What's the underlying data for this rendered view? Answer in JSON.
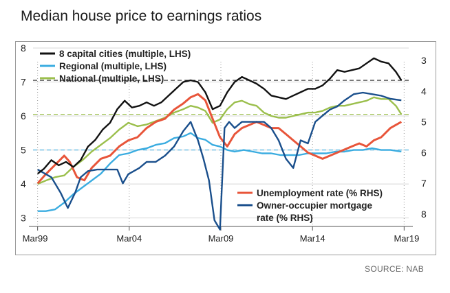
{
  "header": {
    "title": "Median house price to earnings ratios"
  },
  "footer": {
    "source": "SOURCE: NAB"
  },
  "chart_data": {
    "type": "line",
    "title": "Median house price to earnings ratios",
    "xlabel": "",
    "ylabel": "",
    "x_ticks": [
      "Mar99",
      "Mar04",
      "Mar09",
      "Mar14",
      "Mar19"
    ],
    "x_tick_values": [
      1999.25,
      2004.25,
      2009.25,
      2014.25,
      2019.25
    ],
    "xlim": [
      1999.0,
      2019.5
    ],
    "y_left": {
      "ticks": [
        "3",
        "4",
        "5",
        "6",
        "7",
        "8"
      ],
      "range": [
        2.75,
        8.0
      ]
    },
    "y_right": {
      "ticks": [
        "3",
        "4",
        "5",
        "6",
        "7",
        "8"
      ],
      "range": [
        2.6,
        8.4
      ],
      "inverted": true
    },
    "reference_lines": [
      {
        "series": "8 capital cities (multiple, LHS)",
        "y": 7.05,
        "style": "dashed",
        "color": "#222222"
      },
      {
        "series": "Regional (multiple, LHS)",
        "y": 5.0,
        "style": "dashed",
        "color": "#3aace0"
      },
      {
        "series": "National (multiple, LHS)",
        "y": 6.05,
        "style": "dashed",
        "color": "#9bbf4c"
      }
    ],
    "series": [
      {
        "name": "8 capital cities (multiple, LHS)",
        "axis": "left",
        "color": "#111111",
        "points": [
          [
            1999.25,
            4.3
          ],
          [
            1999.6,
            4.45
          ],
          [
            2000.0,
            4.7
          ],
          [
            2000.4,
            4.55
          ],
          [
            2000.8,
            4.65
          ],
          [
            2001.2,
            4.5
          ],
          [
            2001.6,
            4.7
          ],
          [
            2002.0,
            5.1
          ],
          [
            2002.4,
            5.3
          ],
          [
            2002.8,
            5.6
          ],
          [
            2003.2,
            5.8
          ],
          [
            2003.6,
            6.2
          ],
          [
            2004.0,
            6.45
          ],
          [
            2004.4,
            6.25
          ],
          [
            2004.8,
            6.3
          ],
          [
            2005.2,
            6.4
          ],
          [
            2005.6,
            6.3
          ],
          [
            2006.0,
            6.4
          ],
          [
            2006.4,
            6.6
          ],
          [
            2006.8,
            6.8
          ],
          [
            2007.2,
            7.0
          ],
          [
            2007.6,
            7.05
          ],
          [
            2008.0,
            7.0
          ],
          [
            2008.4,
            6.7
          ],
          [
            2008.8,
            6.2
          ],
          [
            2009.2,
            6.3
          ],
          [
            2009.6,
            6.7
          ],
          [
            2010.0,
            7.0
          ],
          [
            2010.4,
            7.15
          ],
          [
            2010.8,
            7.05
          ],
          [
            2011.2,
            6.95
          ],
          [
            2011.6,
            6.8
          ],
          [
            2012.0,
            6.6
          ],
          [
            2012.4,
            6.55
          ],
          [
            2012.8,
            6.5
          ],
          [
            2013.2,
            6.6
          ],
          [
            2013.6,
            6.7
          ],
          [
            2014.0,
            6.8
          ],
          [
            2014.4,
            6.8
          ],
          [
            2014.8,
            6.9
          ],
          [
            2015.2,
            7.1
          ],
          [
            2015.6,
            7.35
          ],
          [
            2016.0,
            7.3
          ],
          [
            2016.4,
            7.35
          ],
          [
            2016.8,
            7.4
          ],
          [
            2017.2,
            7.55
          ],
          [
            2017.6,
            7.7
          ],
          [
            2018.0,
            7.6
          ],
          [
            2018.4,
            7.55
          ],
          [
            2018.8,
            7.3
          ],
          [
            2019.1,
            7.05
          ]
        ]
      },
      {
        "name": "Regional (multiple, LHS)",
        "axis": "left",
        "color": "#3aace0",
        "points": [
          [
            1999.25,
            3.2
          ],
          [
            1999.7,
            3.2
          ],
          [
            2000.2,
            3.25
          ],
          [
            2000.7,
            3.45
          ],
          [
            2001.2,
            3.7
          ],
          [
            2001.7,
            3.9
          ],
          [
            2002.2,
            4.1
          ],
          [
            2002.7,
            4.3
          ],
          [
            2003.2,
            4.6
          ],
          [
            2003.7,
            4.85
          ],
          [
            2004.2,
            4.9
          ],
          [
            2004.7,
            5.0
          ],
          [
            2005.2,
            5.05
          ],
          [
            2005.7,
            5.15
          ],
          [
            2006.2,
            5.2
          ],
          [
            2006.7,
            5.35
          ],
          [
            2007.2,
            5.4
          ],
          [
            2007.6,
            5.5
          ],
          [
            2008.0,
            5.35
          ],
          [
            2008.4,
            5.3
          ],
          [
            2008.8,
            5.15
          ],
          [
            2009.2,
            5.1
          ],
          [
            2009.6,
            5.0
          ],
          [
            2010.0,
            4.95
          ],
          [
            2010.5,
            5.0
          ],
          [
            2011.0,
            4.95
          ],
          [
            2011.5,
            4.9
          ],
          [
            2012.0,
            4.9
          ],
          [
            2012.5,
            4.85
          ],
          [
            2013.0,
            4.85
          ],
          [
            2013.5,
            4.85
          ],
          [
            2014.0,
            4.9
          ],
          [
            2014.5,
            4.9
          ],
          [
            2015.0,
            4.9
          ],
          [
            2015.5,
            4.95
          ],
          [
            2016.0,
            4.95
          ],
          [
            2016.5,
            5.0
          ],
          [
            2017.0,
            5.0
          ],
          [
            2017.5,
            5.05
          ],
          [
            2018.0,
            5.0
          ],
          [
            2018.5,
            5.0
          ],
          [
            2019.1,
            4.95
          ]
        ]
      },
      {
        "name": "National (multiple, LHS)",
        "axis": "left",
        "color": "#9bbf4c",
        "points": [
          [
            1999.25,
            4.0
          ],
          [
            1999.7,
            4.1
          ],
          [
            2000.2,
            4.2
          ],
          [
            2000.7,
            4.25
          ],
          [
            2001.2,
            4.5
          ],
          [
            2001.7,
            4.7
          ],
          [
            2002.2,
            4.95
          ],
          [
            2002.7,
            5.15
          ],
          [
            2003.2,
            5.35
          ],
          [
            2003.7,
            5.6
          ],
          [
            2004.2,
            5.8
          ],
          [
            2004.7,
            5.7
          ],
          [
            2005.2,
            5.75
          ],
          [
            2005.7,
            5.85
          ],
          [
            2006.2,
            5.95
          ],
          [
            2006.7,
            6.1
          ],
          [
            2007.2,
            6.2
          ],
          [
            2007.6,
            6.3
          ],
          [
            2008.0,
            6.25
          ],
          [
            2008.4,
            6.15
          ],
          [
            2008.8,
            5.8
          ],
          [
            2009.2,
            5.9
          ],
          [
            2009.6,
            6.2
          ],
          [
            2010.0,
            6.4
          ],
          [
            2010.4,
            6.45
          ],
          [
            2010.8,
            6.35
          ],
          [
            2011.2,
            6.3
          ],
          [
            2011.6,
            6.1
          ],
          [
            2012.0,
            6.0
          ],
          [
            2012.4,
            5.95
          ],
          [
            2012.8,
            5.95
          ],
          [
            2013.2,
            6.0
          ],
          [
            2013.6,
            6.05
          ],
          [
            2014.0,
            6.1
          ],
          [
            2014.4,
            6.1
          ],
          [
            2014.8,
            6.15
          ],
          [
            2015.2,
            6.25
          ],
          [
            2015.6,
            6.3
          ],
          [
            2016.0,
            6.3
          ],
          [
            2016.4,
            6.35
          ],
          [
            2016.8,
            6.4
          ],
          [
            2017.2,
            6.45
          ],
          [
            2017.6,
            6.55
          ],
          [
            2018.0,
            6.5
          ],
          [
            2018.4,
            6.5
          ],
          [
            2018.8,
            6.3
          ],
          [
            2019.1,
            6.05
          ]
        ]
      },
      {
        "name": "Unemployment rate (% RHS)",
        "axis": "right",
        "color": "#e8553a",
        "points": [
          [
            1999.25,
            7.0
          ],
          [
            1999.7,
            6.7
          ],
          [
            2000.2,
            6.4
          ],
          [
            2000.7,
            6.1
          ],
          [
            2001.0,
            6.3
          ],
          [
            2001.4,
            6.8
          ],
          [
            2001.8,
            6.9
          ],
          [
            2002.2,
            6.5
          ],
          [
            2002.7,
            6.2
          ],
          [
            2003.2,
            6.1
          ],
          [
            2003.7,
            5.8
          ],
          [
            2004.2,
            5.6
          ],
          [
            2004.7,
            5.5
          ],
          [
            2005.2,
            5.2
          ],
          [
            2005.7,
            5.0
          ],
          [
            2006.2,
            4.9
          ],
          [
            2006.7,
            4.6
          ],
          [
            2007.2,
            4.4
          ],
          [
            2007.6,
            4.2
          ],
          [
            2008.0,
            4.1
          ],
          [
            2008.4,
            4.3
          ],
          [
            2008.8,
            4.9
          ],
          [
            2009.2,
            5.5
          ],
          [
            2009.6,
            5.8
          ],
          [
            2010.0,
            5.4
          ],
          [
            2010.4,
            5.2
          ],
          [
            2010.8,
            5.1
          ],
          [
            2011.2,
            5.0
          ],
          [
            2011.6,
            5.1
          ],
          [
            2012.0,
            5.2
          ],
          [
            2012.4,
            5.2
          ],
          [
            2012.8,
            5.4
          ],
          [
            2013.2,
            5.6
          ],
          [
            2013.6,
            5.8
          ],
          [
            2014.0,
            6.0
          ],
          [
            2014.4,
            6.1
          ],
          [
            2014.8,
            6.2
          ],
          [
            2015.2,
            6.1
          ],
          [
            2015.6,
            6.0
          ],
          [
            2016.0,
            5.9
          ],
          [
            2016.4,
            5.8
          ],
          [
            2016.8,
            5.7
          ],
          [
            2017.2,
            5.8
          ],
          [
            2017.6,
            5.6
          ],
          [
            2018.0,
            5.5
          ],
          [
            2018.5,
            5.2
          ],
          [
            2019.1,
            5.0
          ]
        ]
      },
      {
        "name": "Owner-occupier mortgage rate (% RHS)",
        "axis": "right",
        "color": "#1a4f8c",
        "points": [
          [
            1999.25,
            6.55
          ],
          [
            2000.0,
            6.8
          ],
          [
            2000.5,
            7.3
          ],
          [
            2000.9,
            7.8
          ],
          [
            2001.3,
            7.3
          ],
          [
            2001.6,
            6.8
          ],
          [
            2002.0,
            6.6
          ],
          [
            2002.5,
            6.55
          ],
          [
            2003.0,
            6.55
          ],
          [
            2003.3,
            6.55
          ],
          [
            2003.6,
            6.55
          ],
          [
            2003.9,
            7.0
          ],
          [
            2004.2,
            6.7
          ],
          [
            2004.8,
            6.5
          ],
          [
            2005.2,
            6.3
          ],
          [
            2005.7,
            6.3
          ],
          [
            2006.2,
            6.1
          ],
          [
            2006.7,
            5.8
          ],
          [
            2007.2,
            5.3
          ],
          [
            2007.6,
            5.0
          ],
          [
            2008.0,
            5.6
          ],
          [
            2008.3,
            6.2
          ],
          [
            2008.6,
            6.9
          ],
          [
            2008.9,
            8.2
          ],
          [
            2009.2,
            8.5
          ],
          [
            2009.45,
            5.2
          ],
          [
            2009.7,
            5.0
          ],
          [
            2010.0,
            5.2
          ],
          [
            2010.4,
            5.0
          ],
          [
            2010.8,
            5.0
          ],
          [
            2011.2,
            5.0
          ],
          [
            2011.6,
            5.0
          ],
          [
            2012.0,
            5.2
          ],
          [
            2012.4,
            5.6
          ],
          [
            2012.8,
            6.2
          ],
          [
            2013.2,
            6.5
          ],
          [
            2013.6,
            5.6
          ],
          [
            2014.0,
            5.7
          ],
          [
            2014.4,
            5.0
          ],
          [
            2014.8,
            4.8
          ],
          [
            2015.2,
            4.6
          ],
          [
            2015.6,
            4.5
          ],
          [
            2016.0,
            4.3
          ],
          [
            2016.5,
            4.1
          ],
          [
            2017.0,
            4.05
          ],
          [
            2017.5,
            4.1
          ],
          [
            2018.0,
            4.15
          ],
          [
            2018.5,
            4.25
          ],
          [
            2019.1,
            4.3
          ]
        ]
      }
    ],
    "legend": [
      {
        "label": "8 capital cities (multiple, LHS)",
        "color": "#111111"
      },
      {
        "label": "Regional (multiple, LHS)",
        "color": "#3aace0"
      },
      {
        "label": "National (multiple, LHS)",
        "color": "#9bbf4c"
      },
      {
        "label": "Unemployment rate (% RHS)",
        "color": "#e8553a"
      },
      {
        "label": "Owner-occupier mortgage",
        "label2": "rate (% RHS)",
        "color": "#1a4f8c"
      }
    ],
    "legend_placement": [
      "top-left",
      "bottom-right"
    ],
    "grid": "horizontal"
  }
}
